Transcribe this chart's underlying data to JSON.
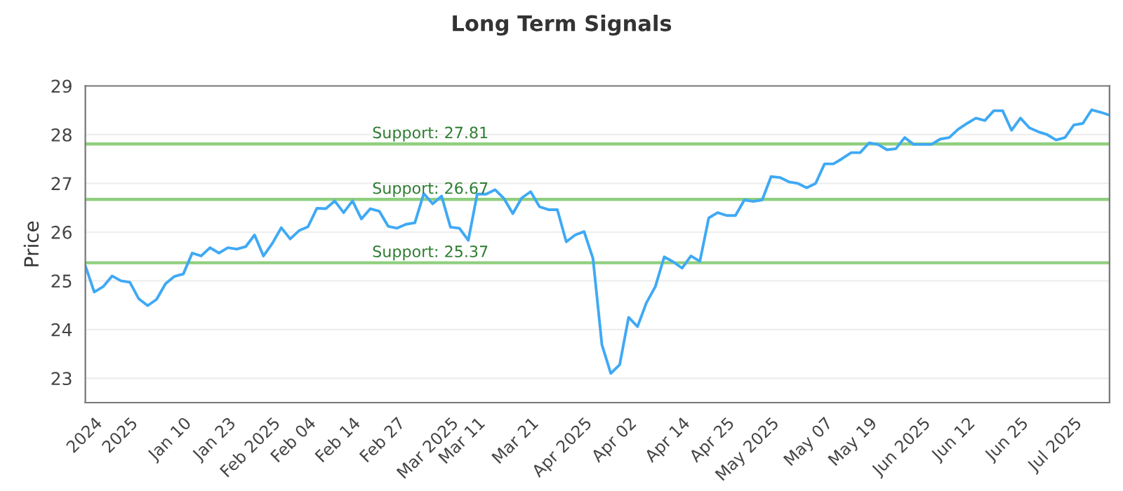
{
  "chart_data": {
    "type": "line",
    "title": "Long Term Signals",
    "ylabel": "Price",
    "categories": [
      null,
      "2024",
      null,
      null,
      null,
      "2025",
      null,
      null,
      null,
      null,
      null,
      "Jan 10",
      null,
      null,
      null,
      null,
      "Jan 23",
      null,
      null,
      null,
      null,
      "Feb 2025",
      null,
      null,
      null,
      "Feb 04",
      null,
      null,
      null,
      null,
      "Feb 14",
      null,
      null,
      null,
      null,
      "Feb 27",
      null,
      null,
      null,
      null,
      null,
      "Mar 2025",
      null,
      null,
      "Mar 11",
      null,
      null,
      null,
      null,
      null,
      "Mar 21",
      null,
      null,
      null,
      null,
      null,
      "Apr 2025",
      null,
      null,
      null,
      null,
      "Apr 02",
      null,
      null,
      null,
      null,
      null,
      "Apr 14",
      null,
      null,
      null,
      null,
      "Apr 25",
      null,
      null,
      null,
      null,
      "May 2025",
      null,
      null,
      null,
      null,
      null,
      "May 07",
      null,
      null,
      null,
      null,
      "May 19",
      null,
      null,
      null,
      null,
      null,
      "Jun 2025",
      null,
      null,
      null,
      null,
      "Jun 12",
      null,
      null,
      null,
      null,
      null,
      "Jun 25",
      null,
      null,
      null,
      null,
      null,
      "Jul 2025",
      null,
      null,
      null,
      null
    ],
    "series": [
      {
        "color": "#3fa9f5",
        "values": [
          25.31,
          24.77,
          24.88,
          25.1,
          25.0,
          24.97,
          24.63,
          24.49,
          24.62,
          24.94,
          25.09,
          25.14,
          25.57,
          25.51,
          25.68,
          25.57,
          25.68,
          25.65,
          25.7,
          25.94,
          25.51,
          25.77,
          26.09,
          25.86,
          26.03,
          26.11,
          26.49,
          26.48,
          26.64,
          26.4,
          26.64,
          26.27,
          26.48,
          26.43,
          26.12,
          26.08,
          26.16,
          26.19,
          26.79,
          26.58,
          26.74,
          26.1,
          26.08,
          25.83,
          26.78,
          26.78,
          26.87,
          26.69,
          26.38,
          26.7,
          26.83,
          26.52,
          26.46,
          26.46,
          25.8,
          25.94,
          26.01,
          25.46,
          23.69,
          23.1,
          23.28,
          24.25,
          24.06,
          24.55,
          24.88,
          25.49,
          25.39,
          25.26,
          25.51,
          25.4,
          26.29,
          26.4,
          26.34,
          26.34,
          26.66,
          26.63,
          26.66,
          27.14,
          27.12,
          27.03,
          27.0,
          26.91,
          27.0,
          27.4,
          27.4,
          27.51,
          27.63,
          27.63,
          27.83,
          27.8,
          27.69,
          27.71,
          27.94,
          27.8,
          27.8,
          27.8,
          27.91,
          27.94,
          28.11,
          28.23,
          28.34,
          28.29,
          28.49,
          28.49,
          28.09,
          28.34,
          28.14,
          28.06,
          28.0,
          27.89,
          27.94,
          28.2,
          28.23,
          28.51,
          28.46,
          28.4
        ]
      }
    ],
    "ylim": [
      22.5,
      29
    ],
    "yticks": [
      23,
      24,
      25,
      26,
      27,
      28,
      29
    ],
    "grid": "y",
    "marker": "none",
    "line_style": "solid",
    "ref_lines": [
      {
        "axis": "y",
        "value": 27.81,
        "label": "Support: 27.81",
        "color": "#8fcf7f"
      },
      {
        "axis": "y",
        "value": 26.67,
        "label": "Support: 26.67",
        "color": "#8fcf7f"
      },
      {
        "axis": "y",
        "value": 25.37,
        "label": "Support: 25.37",
        "color": "#8fcf7f"
      }
    ]
  }
}
